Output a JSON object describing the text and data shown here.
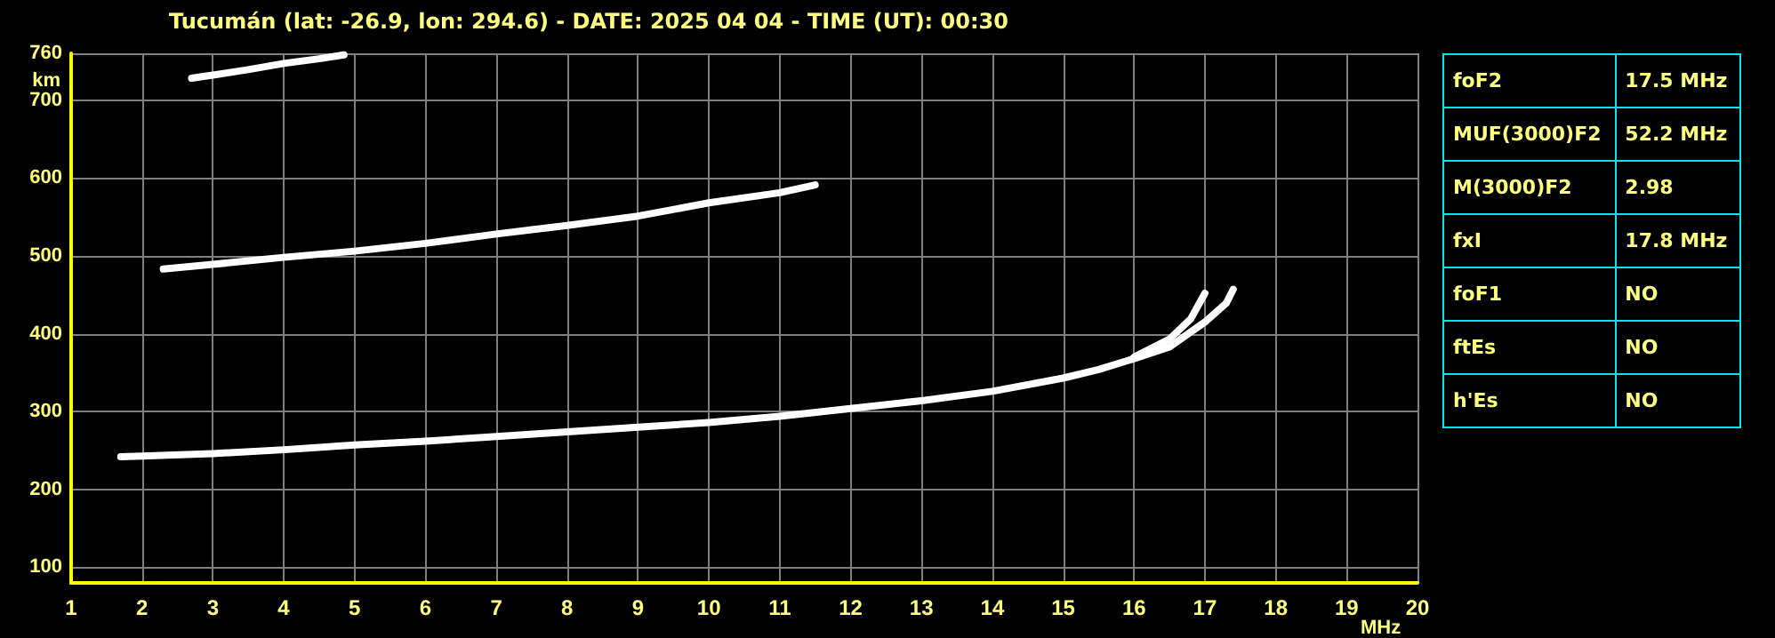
{
  "chart_data": [
    {
      "type": "line",
      "title": "Tucumán (lat: -26.9, lon: 294.6) - DATE: 2025 04 04 - TIME (UT): 00:30",
      "xlabel": "MHz",
      "ylabel": "km",
      "series": [
        {
          "color": "#ffffff",
          "x": [
            1.7,
            2,
            3,
            4,
            5,
            6,
            7,
            8,
            9,
            10,
            11,
            12,
            13,
            14,
            15,
            15.5,
            16,
            16.5,
            17,
            17.3,
            17.4
          ],
          "values": [
            242,
            243,
            246,
            251,
            257,
            262,
            268,
            274,
            280,
            286,
            294,
            304,
            314,
            326,
            343,
            354,
            368,
            383,
            415,
            439,
            457
          ]
        },
        {
          "color": "#ffffff",
          "x": [
            16,
            16.5,
            16.8,
            17
          ],
          "values": [
            370,
            393,
            419,
            452
          ]
        },
        {
          "color": "#ffffff",
          "x": [
            2.3,
            3,
            4,
            5,
            6,
            7,
            8,
            9,
            10,
            11,
            11.5
          ],
          "values": [
            483,
            489,
            498,
            506,
            516,
            528,
            539,
            551,
            568,
            581,
            591
          ]
        },
        {
          "color": "#ffffff",
          "x": [
            2.7,
            3,
            3.5,
            4,
            4.5,
            4.85
          ],
          "values": [
            728,
            732,
            739,
            747,
            753,
            758
          ]
        }
      ],
      "xlim": [
        1,
        20
      ],
      "xticks": [
        1,
        2,
        3,
        4,
        5,
        6,
        7,
        8,
        9,
        10,
        11,
        12,
        13,
        14,
        15,
        16,
        17,
        18,
        19,
        20
      ],
      "ylim": [
        80,
        760
      ],
      "yticks": [
        100,
        200,
        300,
        400,
        500,
        600,
        700,
        760
      ],
      "grid": true,
      "marker": "none",
      "line_style": "solid"
    },
    {
      "type": "other",
      "annotations": [
        "foF2",
        "17.5 MHz",
        "MUF(3000)F2",
        "52.2 MHz",
        "M(3000)F2",
        "2.98",
        "fxI",
        "17.8 MHz",
        "foF1",
        "NO",
        "ftEs",
        "NO",
        "h'Es",
        "NO"
      ]
    }
  ]
}
